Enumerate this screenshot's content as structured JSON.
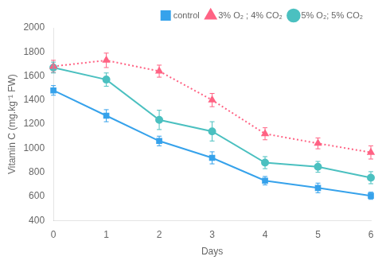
{
  "chart_data": {
    "type": "line",
    "x": [
      0,
      1,
      2,
      3,
      4,
      5,
      6
    ],
    "series": [
      {
        "name": "control",
        "values": [
          1480,
          1270,
          1060,
          920,
          730,
          670,
          605
        ],
        "errors": [
          40,
          50,
          40,
          50,
          35,
          40,
          30
        ],
        "marker": "square",
        "line_style": "solid"
      },
      {
        "name": "3% O₂ ; 4% CO₂",
        "values": [
          1680,
          1730,
          1640,
          1400,
          1120,
          1040,
          965
        ],
        "errors": [
          50,
          60,
          50,
          55,
          50,
          45,
          55
        ],
        "marker": "triangle",
        "line_style": "dotted"
      },
      {
        "name": "5% O₂; 5% CO₂",
        "values": [
          1670,
          1570,
          1235,
          1140,
          880,
          845,
          755
        ],
        "errors": [
          45,
          55,
          80,
          80,
          50,
          45,
          50
        ],
        "marker": "circle",
        "line_style": "solid"
      }
    ],
    "x_label": "Days",
    "y_label": "Vitamin C (mg.kg⁻¹ FW)",
    "xlim": [
      0,
      6
    ],
    "xticks": [
      0,
      1,
      2,
      3,
      4,
      5,
      6
    ],
    "ylim": [
      400,
      2000
    ],
    "yticks": [
      400,
      600,
      800,
      1000,
      1200,
      1400,
      1600,
      1800,
      2000
    ],
    "grid": false,
    "legend": "upper right"
  }
}
